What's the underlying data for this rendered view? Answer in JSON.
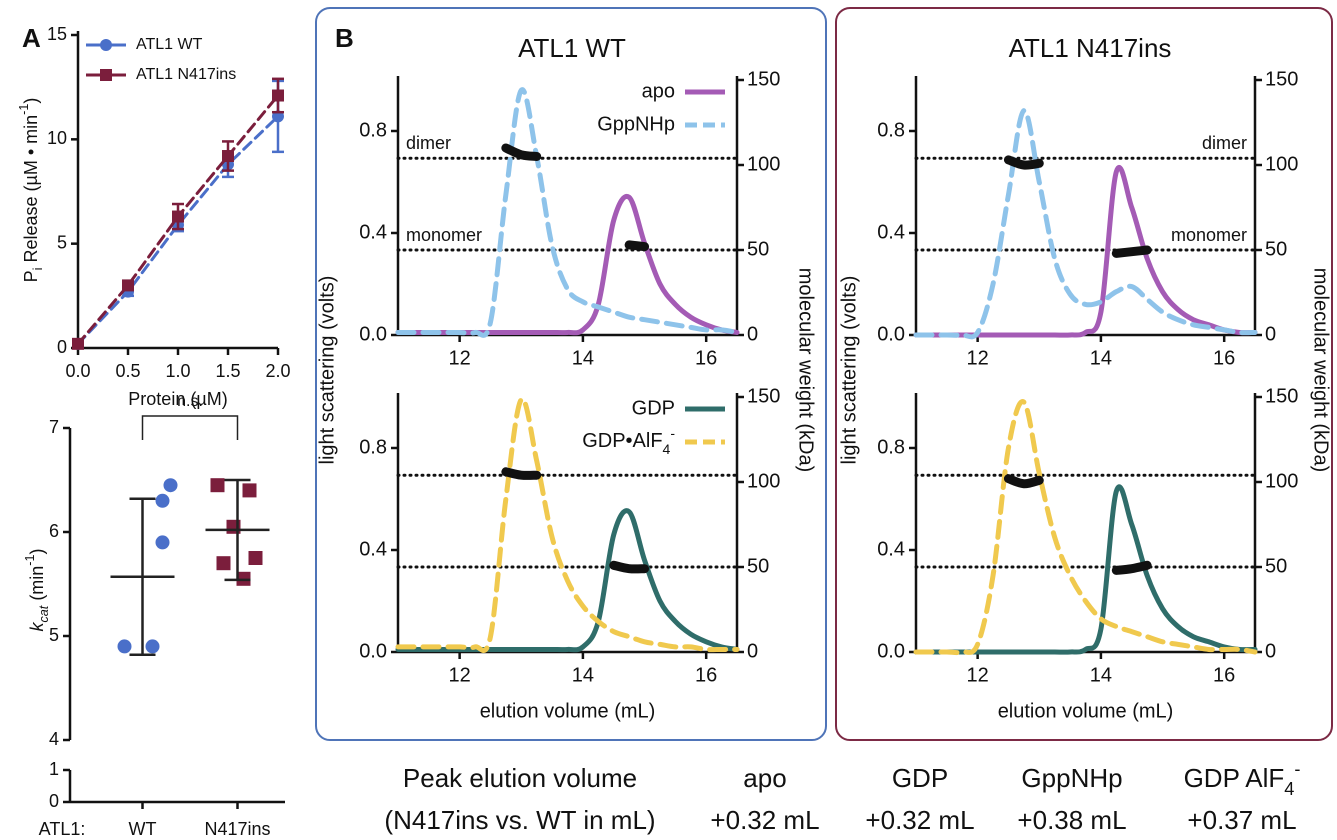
{
  "panel_labels": [
    "A",
    "B"
  ],
  "group_titles": [
    "ATL1 WT",
    "ATL1 N417ins"
  ],
  "chart_data": [
    {
      "type": "line",
      "x": [
        0,
        0.5,
        1,
        1.5,
        2
      ],
      "xlim": [
        0,
        2
      ],
      "xticks": [
        {
          "value": 0,
          "label": "0.0"
        },
        0.5,
        {
          "value": 1,
          "label": "1.0"
        },
        1.5,
        {
          "value": 2,
          "label": "2.0"
        }
      ],
      "ylim": [
        0,
        15
      ],
      "yticks": [
        0,
        5,
        10,
        15
      ],
      "x_label": "Protein (µM)",
      "y_label": {
        "main": "P",
        "sub": "i",
        "rest": " Release (µM • min",
        "sup": "-1",
        "end": ")"
      },
      "legend": "upper left",
      "series": [
        {
          "name": "ATL1 WT",
          "color": "#4a6fc9",
          "marker": "circle",
          "dash": true,
          "values": [
            0.2,
            2.7,
            5.9,
            8.8,
            11.1
          ],
          "errors": [
            0.1,
            0.2,
            0.3,
            0.6,
            1.7
          ]
        },
        {
          "name": "ATL1 N417ins",
          "color": "#7b1e3c",
          "marker": "square",
          "dash": true,
          "values": [
            0.2,
            3.0,
            6.3,
            9.2,
            12.1
          ],
          "errors": [
            0.1,
            0.2,
            0.6,
            0.7,
            0.8
          ]
        }
      ]
    },
    {
      "type": "dot_plot",
      "categories": [
        "WT",
        "N417ins"
      ],
      "category_label": "ATL1:",
      "ylim": [
        4,
        7
      ],
      "yticks": [
        4,
        5,
        6,
        7
      ],
      "ylim_lower": [
        0,
        1
      ],
      "yticks_lower": [
        0,
        1
      ],
      "y_label": {
        "main": "k",
        "sub": "cat",
        "rest": "  (min",
        "sup": "-1",
        "end": ")"
      },
      "annotation": "n.s.",
      "groups": [
        {
          "color": "#4a6fc9",
          "marker": "circle",
          "values": [
            6.45,
            6.3,
            5.9,
            4.9,
            4.9
          ],
          "mean": 5.57,
          "sd": 0.75
        },
        {
          "color": "#7b1e3c",
          "marker": "square",
          "values": [
            6.45,
            6.4,
            6.05,
            5.75,
            5.7,
            5.55
          ],
          "mean": 6.02,
          "sd": 0.48
        }
      ]
    },
    {
      "type": "line",
      "x": [
        11,
        11.25,
        11.5,
        11.75,
        12,
        12.25,
        12.5,
        12.75,
        13,
        13.25,
        13.5,
        13.75,
        14,
        14.25,
        14.5,
        14.75,
        15,
        15.25,
        15.5,
        15.75,
        16,
        16.25,
        16.5
      ],
      "xlim": [
        11,
        16.5
      ],
      "xticks": [
        12,
        14,
        16
      ],
      "ylim": [
        0,
        1
      ],
      "yticks": [
        {
          "value": 0,
          "label": "0.0"
        },
        0.4,
        0.8
      ],
      "y2lim": [
        0,
        150
      ],
      "y2ticks": [
        0,
        50,
        100,
        150
      ],
      "y_label": "light scattering (volts)",
      "y2_label": "molecular weight (kDa)",
      "legend": "upper right",
      "reference_lines": [
        {
          "label": "dimer",
          "value": 104
        },
        {
          "label": "monomer",
          "value": 50
        }
      ],
      "series": [
        {
          "name": "apo",
          "color": "#a45bb5",
          "values": [
            0.01,
            0.01,
            0.01,
            0.01,
            0.01,
            0.01,
            0.01,
            0.01,
            0.01,
            0.01,
            0.01,
            0.01,
            0.02,
            0.12,
            0.45,
            0.54,
            0.36,
            0.2,
            0.12,
            0.07,
            0.04,
            0.02,
            0.01
          ]
        },
        {
          "name": "GppNHp",
          "color": "#8ec3ea",
          "dash": true,
          "values": [
            0.01,
            0.01,
            0.01,
            0.01,
            0.01,
            0.01,
            0.05,
            0.55,
            0.96,
            0.7,
            0.35,
            0.18,
            0.13,
            0.11,
            0.09,
            0.07,
            0.06,
            0.05,
            0.04,
            0.03,
            0.02,
            0.02,
            0.01
          ]
        },
        {
          "color": "#111111",
          "axis": "y2",
          "values": [
            null,
            null,
            null,
            null,
            null,
            null,
            null,
            null,
            null,
            null,
            null,
            null,
            null,
            null,
            null,
            53,
            52,
            null,
            null,
            null,
            null,
            null,
            null
          ]
        },
        {
          "color": "#111111",
          "axis": "y2",
          "values": [
            null,
            null,
            null,
            null,
            null,
            null,
            null,
            110,
            106,
            105,
            null,
            null,
            null,
            null,
            null,
            null,
            null,
            null,
            null,
            null,
            null,
            null,
            null
          ]
        }
      ]
    },
    {
      "type": "line",
      "x": [
        11,
        11.25,
        11.5,
        11.75,
        12,
        12.25,
        12.5,
        12.75,
        13,
        13.25,
        13.5,
        13.75,
        14,
        14.25,
        14.5,
        14.75,
        15,
        15.25,
        15.5,
        15.75,
        16,
        16.25,
        16.5
      ],
      "xlim": [
        11,
        16.5
      ],
      "xticks": [
        12,
        14,
        16
      ],
      "ylim": [
        0,
        1
      ],
      "yticks": [
        {
          "value": 0,
          "label": "0.0"
        },
        0.4,
        0.8
      ],
      "y2lim": [
        0,
        150
      ],
      "y2ticks": [
        0,
        50,
        100,
        150
      ],
      "x_label": "elution volume (mL)",
      "legend": "upper right",
      "reference_lines": [
        {
          "value": 104
        },
        {
          "value": 50
        }
      ],
      "series": [
        {
          "name": "GDP",
          "color": "#2f6d6a",
          "values": [
            0.01,
            0.01,
            0.01,
            0.01,
            0.01,
            0.01,
            0.01,
            0.01,
            0.01,
            0.01,
            0.01,
            0.01,
            0.02,
            0.12,
            0.46,
            0.55,
            0.36,
            0.2,
            0.12,
            0.07,
            0.04,
            0.02,
            0.01
          ]
        },
        {
          "name": {
            "main": "GDP•AlF",
            "sub": "4",
            "sup": "-"
          },
          "color": "#f0c94e",
          "dash": true,
          "values": [
            0.02,
            0.02,
            0.02,
            0.02,
            0.02,
            0.02,
            0.06,
            0.6,
            0.99,
            0.75,
            0.45,
            0.28,
            0.18,
            0.12,
            0.08,
            0.06,
            0.04,
            0.03,
            0.02,
            0.02,
            0.01,
            0.01,
            0.01
          ]
        },
        {
          "color": "#111111",
          "axis": "y2",
          "values": [
            null,
            null,
            null,
            null,
            null,
            null,
            null,
            null,
            null,
            null,
            null,
            null,
            null,
            null,
            51,
            49,
            49,
            null,
            null,
            null,
            null,
            null,
            null
          ]
        },
        {
          "color": "#111111",
          "axis": "y2",
          "values": [
            null,
            null,
            null,
            null,
            null,
            null,
            null,
            106,
            104,
            104,
            null,
            null,
            null,
            null,
            null,
            null,
            null,
            null,
            null,
            null,
            null,
            null,
            null
          ]
        }
      ]
    },
    {
      "type": "line",
      "x": [
        11,
        11.25,
        11.5,
        11.75,
        12,
        12.25,
        12.5,
        12.75,
        13,
        13.25,
        13.5,
        13.75,
        14,
        14.25,
        14.5,
        14.75,
        15,
        15.25,
        15.5,
        15.75,
        16,
        16.25,
        16.5
      ],
      "xlim": [
        11,
        16.5
      ],
      "xticks": [
        12,
        14,
        16
      ],
      "ylim": [
        0,
        1
      ],
      "yticks": [
        {
          "value": 0,
          "label": "0.0"
        },
        0.4,
        0.8
      ],
      "y2lim": [
        0,
        150
      ],
      "y2ticks": [
        0,
        50,
        100,
        150
      ],
      "y_label": "light scattering (volts)",
      "y2_label": "molecular weight (kDa)",
      "reference_lines": [
        {
          "label": "dimer",
          "value": 104
        },
        {
          "label": "monomer",
          "value": 50
        }
      ],
      "series": [
        {
          "color": "#a45bb5",
          "values": [
            0,
            0,
            0,
            0,
            0,
            0,
            0,
            0,
            0,
            0,
            0,
            0.01,
            0.09,
            0.64,
            0.5,
            0.3,
            0.17,
            0.1,
            0.06,
            0.04,
            0.02,
            0.01,
            0.01
          ]
        },
        {
          "color": "#8ec3ea",
          "dash": true,
          "values": [
            0,
            0,
            0,
            0,
            0.01,
            0.2,
            0.55,
            0.88,
            0.6,
            0.3,
            0.16,
            0.12,
            0.13,
            0.17,
            0.19,
            0.14,
            0.09,
            0.06,
            0.04,
            0.03,
            0.02,
            0.01,
            0.01
          ]
        },
        {
          "color": "#111111",
          "axis": "y2",
          "values": [
            null,
            null,
            null,
            null,
            null,
            null,
            null,
            null,
            null,
            null,
            null,
            null,
            null,
            48,
            49,
            50,
            null,
            null,
            null,
            null,
            null,
            null,
            null
          ]
        },
        {
          "color": "#111111",
          "axis": "y2",
          "values": [
            null,
            null,
            null,
            null,
            null,
            null,
            103,
            100,
            101,
            null,
            null,
            null,
            null,
            null,
            null,
            null,
            null,
            null,
            null,
            null,
            null,
            null,
            null
          ]
        }
      ]
    },
    {
      "type": "line",
      "x": [
        11,
        11.25,
        11.5,
        11.75,
        12,
        12.25,
        12.5,
        12.75,
        13,
        13.25,
        13.5,
        13.75,
        14,
        14.25,
        14.5,
        14.75,
        15,
        15.25,
        15.5,
        15.75,
        16,
        16.25,
        16.5
      ],
      "xlim": [
        11,
        16.5
      ],
      "xticks": [
        12,
        14,
        16
      ],
      "ylim": [
        0,
        1
      ],
      "yticks": [
        {
          "value": 0,
          "label": "0.0"
        },
        0.4,
        0.8
      ],
      "y2lim": [
        0,
        150
      ],
      "y2ticks": [
        0,
        50,
        100,
        150
      ],
      "x_label": "elution volume (mL)",
      "reference_lines": [
        {
          "value": 104
        },
        {
          "value": 50
        }
      ],
      "series": [
        {
          "color": "#2f6d6a",
          "values": [
            0,
            0,
            0,
            0,
            0,
            0,
            0,
            0,
            0,
            0,
            0,
            0.01,
            0.09,
            0.63,
            0.5,
            0.3,
            0.17,
            0.1,
            0.06,
            0.04,
            0.02,
            0.01,
            0.01
          ]
        },
        {
          "color": "#f0c94e",
          "dash": true,
          "values": [
            0,
            0,
            0,
            0,
            0.03,
            0.3,
            0.8,
            0.98,
            0.7,
            0.45,
            0.3,
            0.2,
            0.13,
            0.1,
            0.08,
            0.06,
            0.04,
            0.03,
            0.02,
            0.01,
            0.01,
            0.01,
            0
          ]
        },
        {
          "color": "#111111",
          "axis": "y2",
          "values": [
            null,
            null,
            null,
            null,
            null,
            null,
            null,
            null,
            null,
            null,
            null,
            null,
            null,
            48,
            49,
            51,
            null,
            null,
            null,
            null,
            null,
            null,
            null
          ]
        },
        {
          "color": "#111111",
          "axis": "y2",
          "values": [
            null,
            null,
            null,
            null,
            null,
            null,
            102,
            99,
            101,
            null,
            null,
            null,
            null,
            null,
            null,
            null,
            null,
            null,
            null,
            null,
            null,
            null,
            null
          ]
        }
      ]
    }
  ],
  "summary": {
    "header": [
      "Peak elution volume",
      "apo",
      "GDP",
      "GppNHp",
      {
        "main": "GDP  AlF",
        "sub": "4",
        "sup": "-"
      }
    ],
    "row": [
      "(N417ins vs. WT in mL)",
      "+0.32 mL",
      "+0.32 mL",
      "+0.38 mL",
      "+0.37 mL"
    ]
  }
}
